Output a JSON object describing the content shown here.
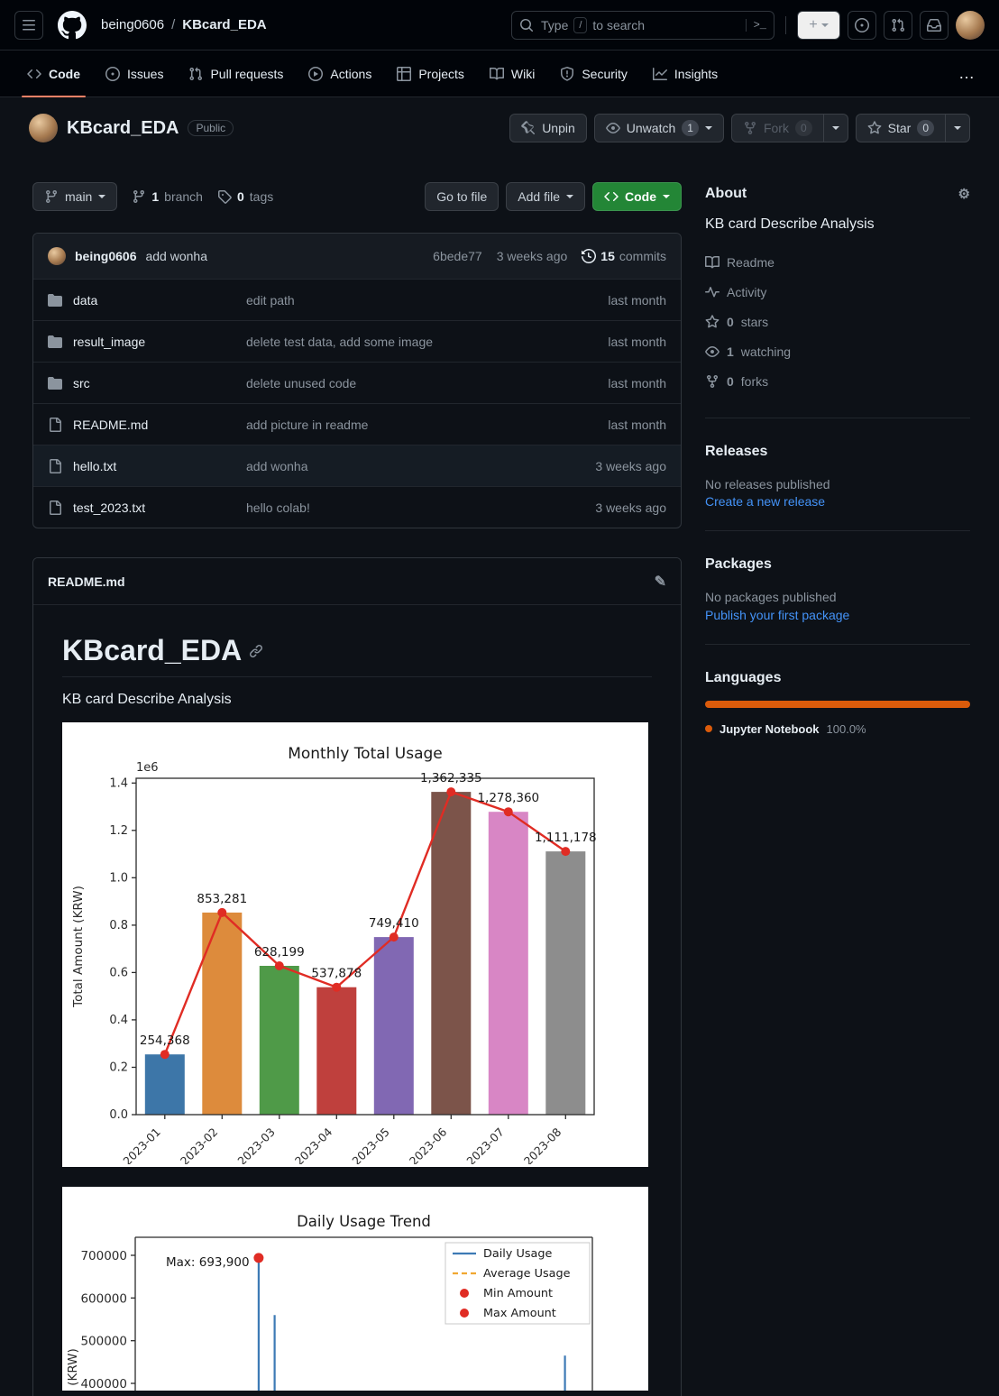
{
  "topnav": {
    "owner": "being0606",
    "separator": "/",
    "repo": "KBcard_EDA",
    "search_type": "Type",
    "search_slash": "/",
    "search_rest": "to search",
    "terminal": ">_",
    "plus": "+"
  },
  "tabs": {
    "items": [
      {
        "label": "Code"
      },
      {
        "label": "Issues"
      },
      {
        "label": "Pull requests"
      },
      {
        "label": "Actions"
      },
      {
        "label": "Projects"
      },
      {
        "label": "Wiki"
      },
      {
        "label": "Security"
      },
      {
        "label": "Insights"
      }
    ],
    "overflow": "…"
  },
  "repo": {
    "name": "KBcard_EDA",
    "visibility": "Public",
    "unpin": "Unpin",
    "watch": "Unwatch",
    "watch_count": "1",
    "fork": "Fork",
    "fork_count": "0",
    "star": "Star",
    "star_count": "0"
  },
  "toolbar": {
    "branch": "main",
    "branch_count": "1",
    "branch_word": "branch",
    "tag_count": "0",
    "tag_word": "tags",
    "goto_file": "Go to file",
    "add_file": "Add file",
    "code": "Code"
  },
  "commit": {
    "author": "being0606",
    "message": "add wonha",
    "sha": "6bede77",
    "date": "3 weeks ago",
    "count": "15",
    "count_word": "commits"
  },
  "files": {
    "rows": [
      {
        "name": "data",
        "message": "edit path",
        "date": "last month"
      },
      {
        "name": "result_image",
        "message": "delete test data, add some image",
        "date": "last month"
      },
      {
        "name": "src",
        "message": "delete unused code",
        "date": "last month"
      },
      {
        "name": "README.md",
        "message": "add picture in readme",
        "date": "last month"
      },
      {
        "name": "hello.txt",
        "message": "add wonha",
        "date": "3 weeks ago"
      },
      {
        "name": "test_2023.txt",
        "message": "hello colab!",
        "date": "3 weeks ago"
      }
    ]
  },
  "readme": {
    "filename": "README.md",
    "heading": "KBcard_EDA",
    "paragraph": "KB card Describe Analysis"
  },
  "sidebar": {
    "about": {
      "title": "About",
      "description": "KB card Describe Analysis",
      "readme_label": "Readme",
      "activity_label": "Activity",
      "stars_count": "0",
      "stars_label": "stars",
      "watching_count": "1",
      "watching_label": "watching",
      "forks_count": "0",
      "forks_label": "forks"
    },
    "releases": {
      "title": "Releases",
      "empty": "No releases published",
      "link": "Create a new release"
    },
    "packages": {
      "title": "Packages",
      "empty": "No packages published",
      "link": "Publish your first package"
    },
    "languages": {
      "title": "Languages",
      "name": "Jupyter Notebook",
      "percent": "100.0%",
      "color": "#DA5B0B"
    }
  },
  "chart_data": [
    {
      "type": "bar+line",
      "title": "Monthly Total Usage",
      "ylabel": "Total Amount (KRW)",
      "offset_text": "1e6",
      "categories": [
        "2023-01",
        "2023-02",
        "2023-03",
        "2023-04",
        "2023-05",
        "2023-06",
        "2023-07",
        "2023-08"
      ],
      "values": [
        254368,
        853281,
        628199,
        537878,
        749410,
        1362335,
        1278360,
        1111178
      ],
      "bar_colors": [
        "#3d76a8",
        "#dd8b3c",
        "#4f9a48",
        "#bf403d",
        "#8168b3",
        "#7c544a",
        "#d886c5",
        "#8d8d8d"
      ],
      "line_color": "#e02c24",
      "ylim": [
        0,
        1420000
      ],
      "yticks": [
        0,
        200000,
        400000,
        600000,
        800000,
        1000000,
        1200000,
        1400000
      ],
      "legend_position": "none",
      "grid": false
    },
    {
      "type": "line",
      "title": "Daily Usage Trend",
      "ylabel_visible": "(KRW)",
      "yticks": [
        400000,
        500000,
        600000,
        700000
      ],
      "annotation": "Max: 693,900",
      "max_value": 693900,
      "visible_spikes": [
        {
          "x_frac": 0.27,
          "value": 693900,
          "is_max": true
        },
        {
          "x_frac": 0.305,
          "value": 560000
        },
        {
          "x_frac": 0.94,
          "value": 465000
        }
      ],
      "legend": [
        {
          "label": "Daily Usage",
          "style": "line",
          "color": "#3d7ab5"
        },
        {
          "label": "Average Usage",
          "style": "dashed",
          "color": "#f0a832"
        },
        {
          "label": "Min Amount",
          "style": "dot",
          "color": "#e02c24"
        },
        {
          "label": "Max Amount",
          "style": "dot",
          "color": "#e02c24"
        }
      ],
      "legend_position": "upper right",
      "grid": false
    }
  ]
}
